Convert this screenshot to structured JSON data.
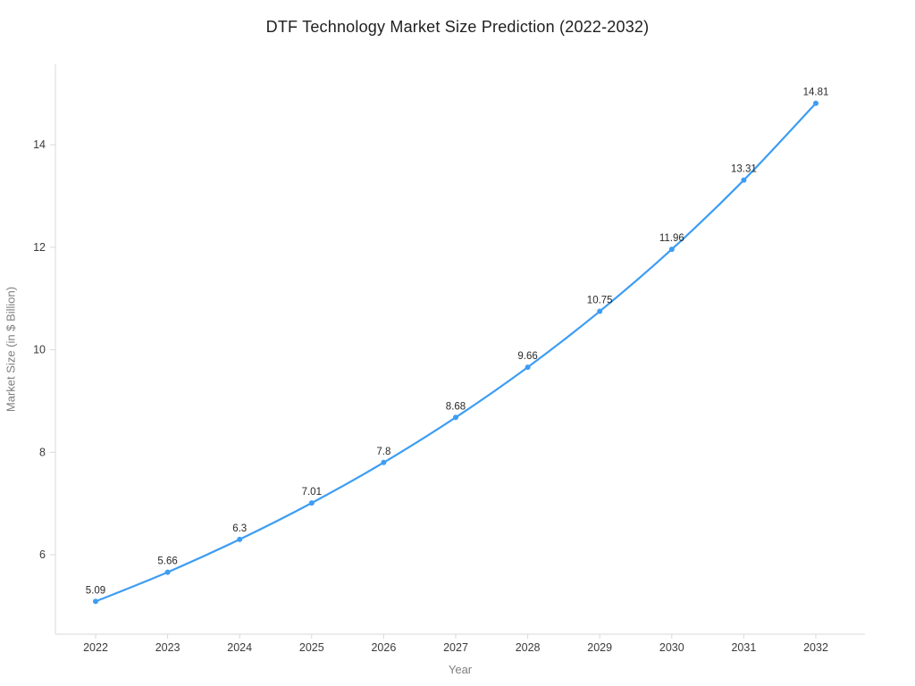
{
  "chart_data": {
    "type": "line",
    "title": "DTF Technology Market Size Prediction (2022-2032)",
    "xlabel": "Year",
    "ylabel": "Market Size (in $ Billion)",
    "categories": [
      "2022",
      "2023",
      "2024",
      "2025",
      "2026",
      "2027",
      "2028",
      "2029",
      "2030",
      "2031",
      "2032"
    ],
    "values": [
      5.09,
      5.66,
      6.3,
      7.01,
      7.8,
      8.68,
      9.66,
      10.75,
      11.96,
      13.31,
      14.81
    ],
    "data_labels": [
      "5.09",
      "5.66",
      "6.3",
      "7.01",
      "7.8",
      "8.68",
      "9.66",
      "10.75",
      "11.96",
      "13.31",
      "14.81"
    ],
    "y_ticks": [
      6,
      8,
      10,
      12,
      14
    ],
    "ylim": [
      4.45,
      15.57
    ],
    "grid": false,
    "legend": "none",
    "line_color": "#3d9df3",
    "marker_color": "#3d9df3",
    "axis_color": "#d9d9d9",
    "tick_label_color": "#3b3b3b",
    "data_label_color": "#2a2a2a"
  }
}
